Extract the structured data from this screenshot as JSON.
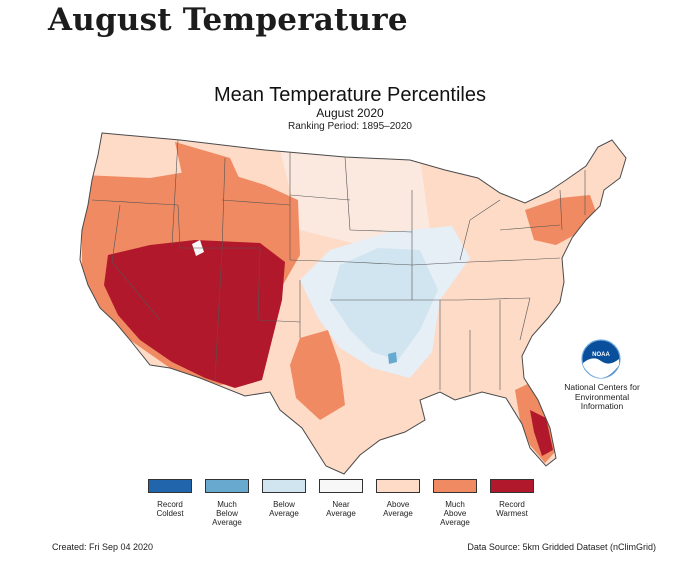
{
  "page": {
    "heading": "August Temperature"
  },
  "map": {
    "title": "Mean Temperature Percentiles",
    "subtitle": "August 2020",
    "ranking_period": "Ranking Period: 1895–2020",
    "colors": {
      "record_coldest": "#2166ac",
      "much_below": "#67a9cf",
      "below": "#d1e5f0",
      "near": "#f7f7f7",
      "above": "#fddbc7",
      "much_above": "#ef8a62",
      "record_warmest": "#b2182b",
      "border": "#555555"
    }
  },
  "legend": {
    "items": [
      {
        "label": "Record\nColdest",
        "color": "#2166ac"
      },
      {
        "label": "Much\nBelow\nAverage",
        "color": "#67a9cf"
      },
      {
        "label": "Below\nAverage",
        "color": "#d1e5f0"
      },
      {
        "label": "Near\nAverage",
        "color": "#f7f7f7"
      },
      {
        "label": "Above\nAverage",
        "color": "#fddbc7"
      },
      {
        "label": "Much\nAbove\nAverage",
        "color": "#ef8a62"
      },
      {
        "label": "Record\nWarmest",
        "color": "#b2182b"
      }
    ]
  },
  "noaa": {
    "logo_text": "NOAA",
    "caption": "National Centers for\nEnvironmental\nInformation"
  },
  "footer": {
    "created": "Created: Fri Sep 04 2020",
    "source": "Data Source: 5km Gridded Dataset (nClimGrid)"
  }
}
